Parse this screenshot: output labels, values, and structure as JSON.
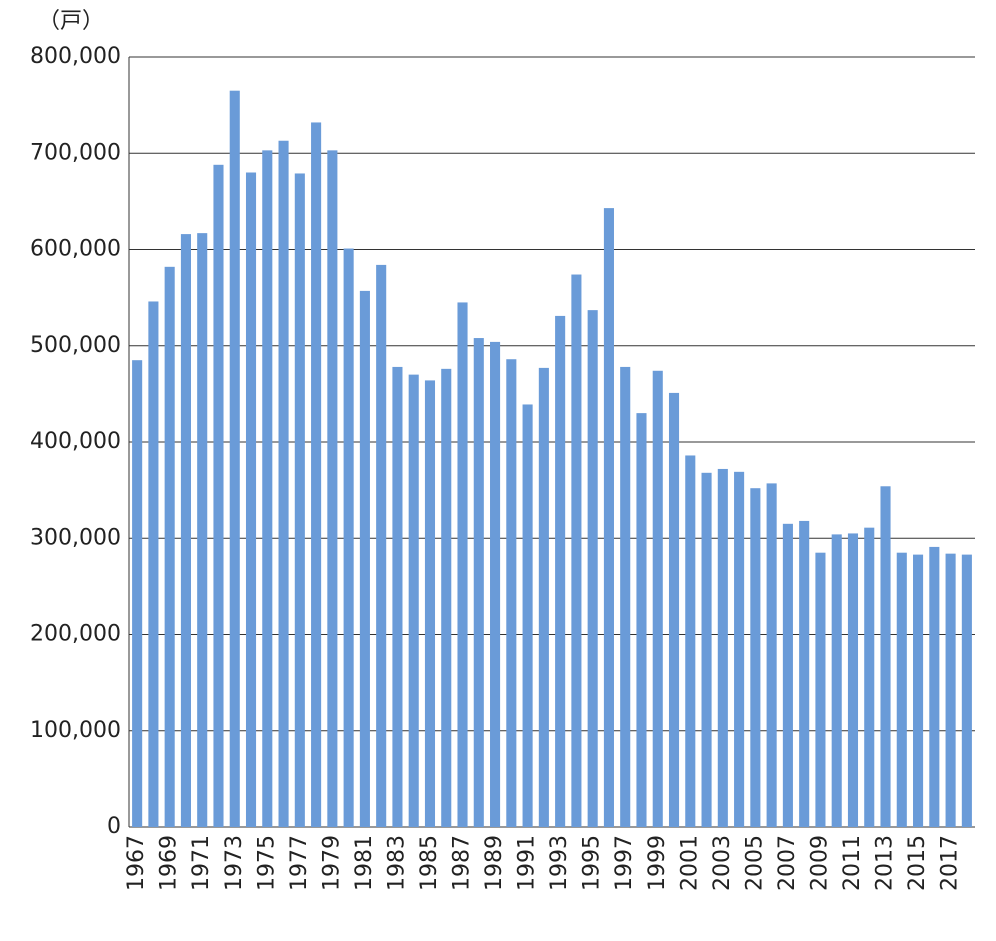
{
  "chart_data": {
    "type": "bar",
    "y_unit": "（戸）",
    "categories": [
      "1967",
      null,
      "1969",
      null,
      "1971",
      null,
      "1973",
      null,
      "1975",
      null,
      "1977",
      null,
      "1979",
      null,
      "1981",
      null,
      "1983",
      null,
      "1985",
      null,
      "1987",
      null,
      "1989",
      null,
      "1991",
      null,
      "1993",
      null,
      "1995",
      null,
      "1997",
      null,
      "1999",
      null,
      "2001",
      null,
      "2003",
      null,
      "2005",
      null,
      "2007",
      null,
      "2009",
      null,
      "2011",
      null,
      "2013",
      null,
      "2015",
      null,
      "2017",
      null
    ],
    "values": [
      485000,
      546000,
      582000,
      616000,
      617000,
      688000,
      765000,
      680000,
      703000,
      713000,
      679000,
      732000,
      703000,
      601000,
      557000,
      584000,
      478000,
      470000,
      464000,
      476000,
      545000,
      508000,
      504000,
      486000,
      439000,
      477000,
      531000,
      574000,
      537000,
      643000,
      478000,
      430000,
      474000,
      451000,
      386000,
      368000,
      372000,
      369000,
      352000,
      357000,
      315000,
      318000,
      285000,
      304000,
      305000,
      311000,
      354000,
      285000,
      283000,
      291000,
      284000,
      283000
    ],
    "color": "#6a9bd8",
    "ylim": [
      0,
      800000
    ],
    "yticks": [
      0,
      {
        "value": 100000,
        "label": "100,000"
      },
      {
        "value": 200000,
        "label": "200,000"
      },
      {
        "value": 300000,
        "label": "300,000"
      },
      {
        "value": 400000,
        "label": "400,000"
      },
      {
        "value": 500000,
        "label": "500,000"
      },
      {
        "value": 600000,
        "label": "600,000"
      },
      {
        "value": 700000,
        "label": "700,000"
      },
      {
        "value": 800000,
        "label": "800,000"
      }
    ],
    "grid": true
  }
}
